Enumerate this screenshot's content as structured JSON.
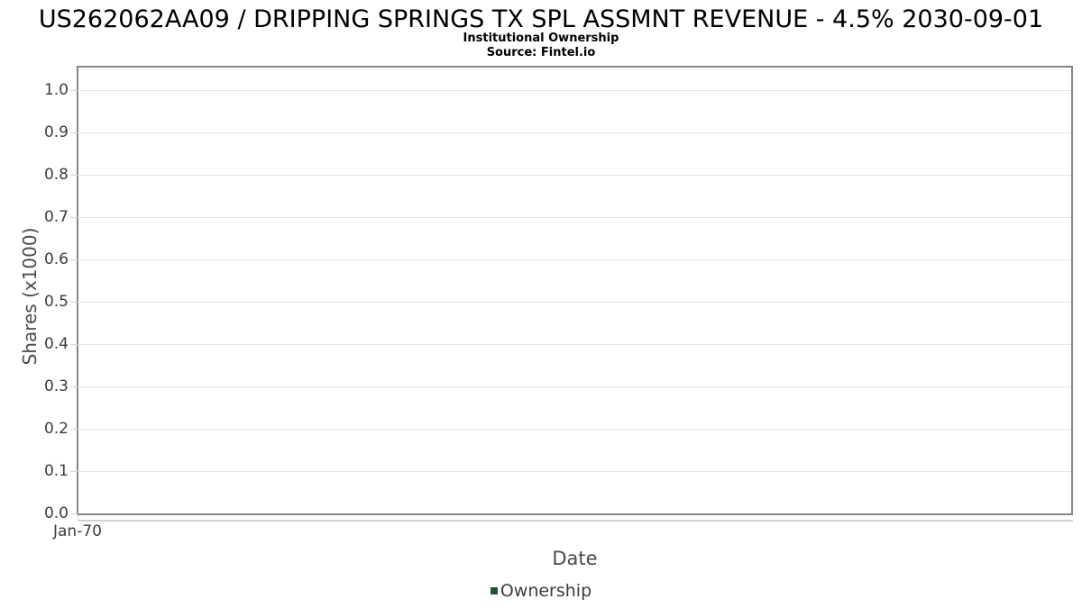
{
  "header": {
    "title": "US262062AA09 / DRIPPING SPRINGS TX SPL ASSMNT REVENUE - 4.5% 2030-09-01",
    "subtitle": "Institutional Ownership",
    "source": "Source: Fintel.io"
  },
  "axes": {
    "y_label": "Shares (x1000)",
    "x_label": "Date",
    "y_tick_labels": [
      "0.0",
      "0.1",
      "0.2",
      "0.3",
      "0.4",
      "0.5",
      "0.6",
      "0.7",
      "0.8",
      "0.9",
      "1.0"
    ],
    "x_tick_labels": [
      "Jan-70"
    ]
  },
  "legend": {
    "items": [
      {
        "label": "Ownership",
        "color": "#1d5632"
      }
    ]
  },
  "colors": {
    "plot_border": "#868686",
    "gridline": "#e4e4e4",
    "tick": "#d4d4d4",
    "shadow": "#cfcfcf",
    "tick_label": "#3c3c3c",
    "axis_label": "#4a4a4a",
    "series_green": "#1d5632",
    "background": "#ffffff"
  },
  "chart_data": {
    "type": "area",
    "title": "US262062AA09 / DRIPPING SPRINGS TX SPL ASSMNT REVENUE - 4.5% 2030-09-01",
    "subtitle": "Institutional Ownership",
    "source": "Source: Fintel.io",
    "xlabel": "Date",
    "ylabel": "Shares (x1000)",
    "ylim": [
      0.0,
      1.05
    ],
    "y_ticks": [
      0.0,
      0.1,
      0.2,
      0.3,
      0.4,
      0.5,
      0.6,
      0.7,
      0.8,
      0.9,
      1.0
    ],
    "x_tick_labels": [
      "Jan-70"
    ],
    "grid": true,
    "legend_position": "bottom",
    "series": [
      {
        "name": "Ownership",
        "color": "#1d5632",
        "x": [],
        "values": []
      }
    ]
  }
}
